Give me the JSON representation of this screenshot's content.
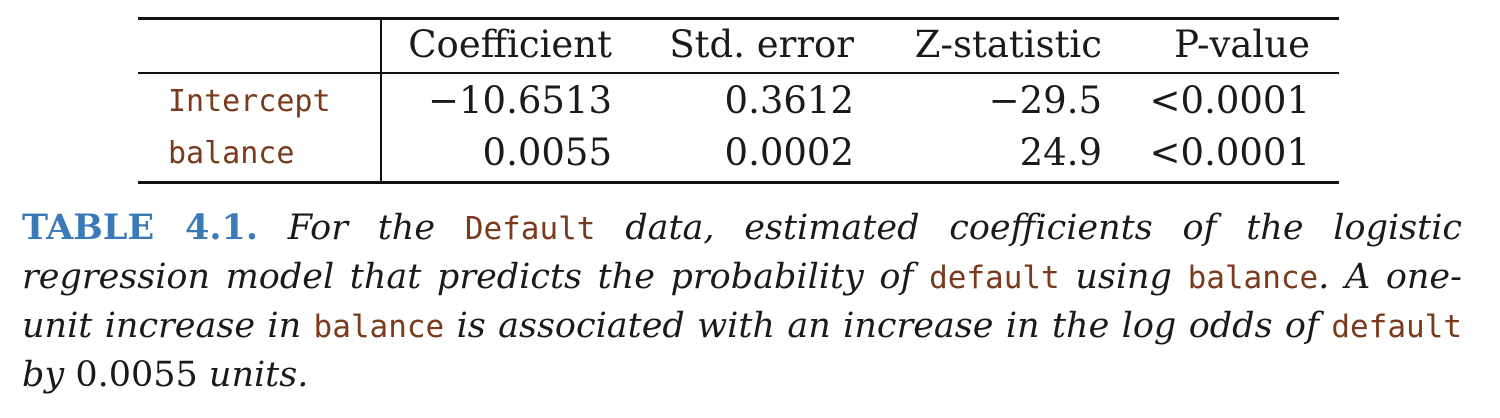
{
  "table": {
    "columns": [
      "",
      "Coefficient",
      "Std. error",
      "Z-statistic",
      "P-value"
    ],
    "rows": [
      {
        "label": "Intercept",
        "cells": [
          "−10.6513",
          "0.3612",
          "−29.5",
          "<0.0001"
        ]
      },
      {
        "label": "balance",
        "cells": [
          "0.0055",
          "0.0002",
          "24.9",
          "<0.0001"
        ]
      }
    ]
  },
  "caption": {
    "label": "TABLE 4.1.",
    "parts": [
      " For the ",
      "Default",
      " data, estimated coefficients of the logistic regression model that predicts the probability of ",
      "default",
      " using ",
      "balance",
      ". A one-unit increase in ",
      "balance",
      " is associated with an increase in the log odds of ",
      "default",
      " by ",
      "0.0055",
      " units."
    ]
  },
  "colors": {
    "code": "#7a3a1c",
    "label": "#3a7ab8",
    "text": "#1a1a1a"
  }
}
